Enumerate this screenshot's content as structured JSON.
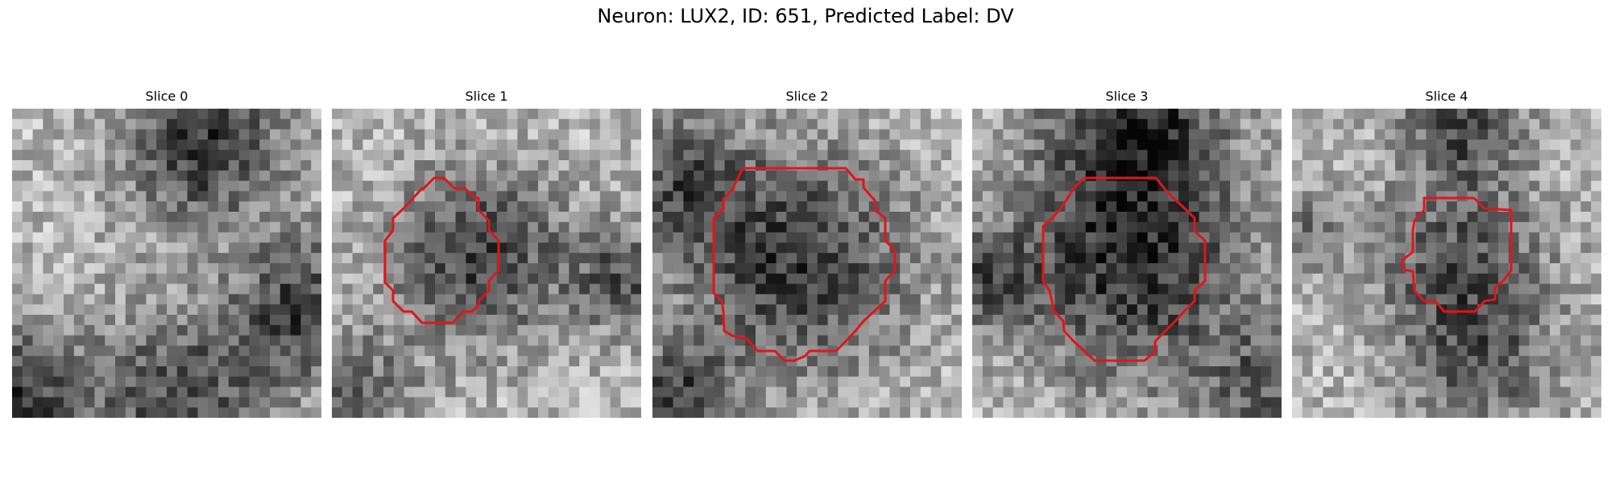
{
  "title": "Neuron: LUX2, ID: 651, Predicted Label: DV",
  "panels": [
    {
      "title": "Slice 0",
      "seed": 11,
      "dark_spots": [
        [
          0.62,
          0.12,
          0.18,
          0.95
        ],
        [
          0.95,
          0.65,
          0.16,
          0.85
        ],
        [
          0.0,
          0.95,
          0.18,
          0.9
        ],
        [
          0.55,
          0.92,
          0.2,
          0.75
        ]
      ],
      "has_contour": false
    },
    {
      "title": "Slice 1",
      "seed": 23,
      "dark_spots": [
        [
          0.48,
          0.48,
          0.2,
          0.85
        ],
        [
          0.95,
          0.55,
          0.12,
          0.7
        ],
        [
          0.08,
          0.92,
          0.14,
          0.55
        ]
      ],
      "has_contour": true
    },
    {
      "title": "Slice 2",
      "seed": 37,
      "dark_spots": [
        [
          0.47,
          0.5,
          0.26,
          0.9
        ],
        [
          0.08,
          0.25,
          0.16,
          0.65
        ],
        [
          0.08,
          0.92,
          0.12,
          0.75
        ]
      ],
      "has_contour": true
    },
    {
      "title": "Slice 3",
      "seed": 41,
      "dark_spots": [
        [
          0.52,
          0.5,
          0.27,
          0.98
        ],
        [
          0.52,
          0.02,
          0.2,
          0.9
        ],
        [
          0.05,
          0.55,
          0.12,
          0.6
        ],
        [
          0.95,
          0.9,
          0.14,
          0.6
        ]
      ],
      "has_contour": true
    },
    {
      "title": "Slice 4",
      "seed": 53,
      "dark_spots": [
        [
          0.55,
          0.5,
          0.2,
          0.7
        ],
        [
          0.55,
          0.05,
          0.14,
          0.75
        ],
        [
          0.05,
          0.4,
          0.08,
          0.5
        ],
        [
          0.6,
          0.85,
          0.18,
          0.55
        ]
      ],
      "has_contour": true
    }
  ],
  "contour_color": "#e3141a"
}
